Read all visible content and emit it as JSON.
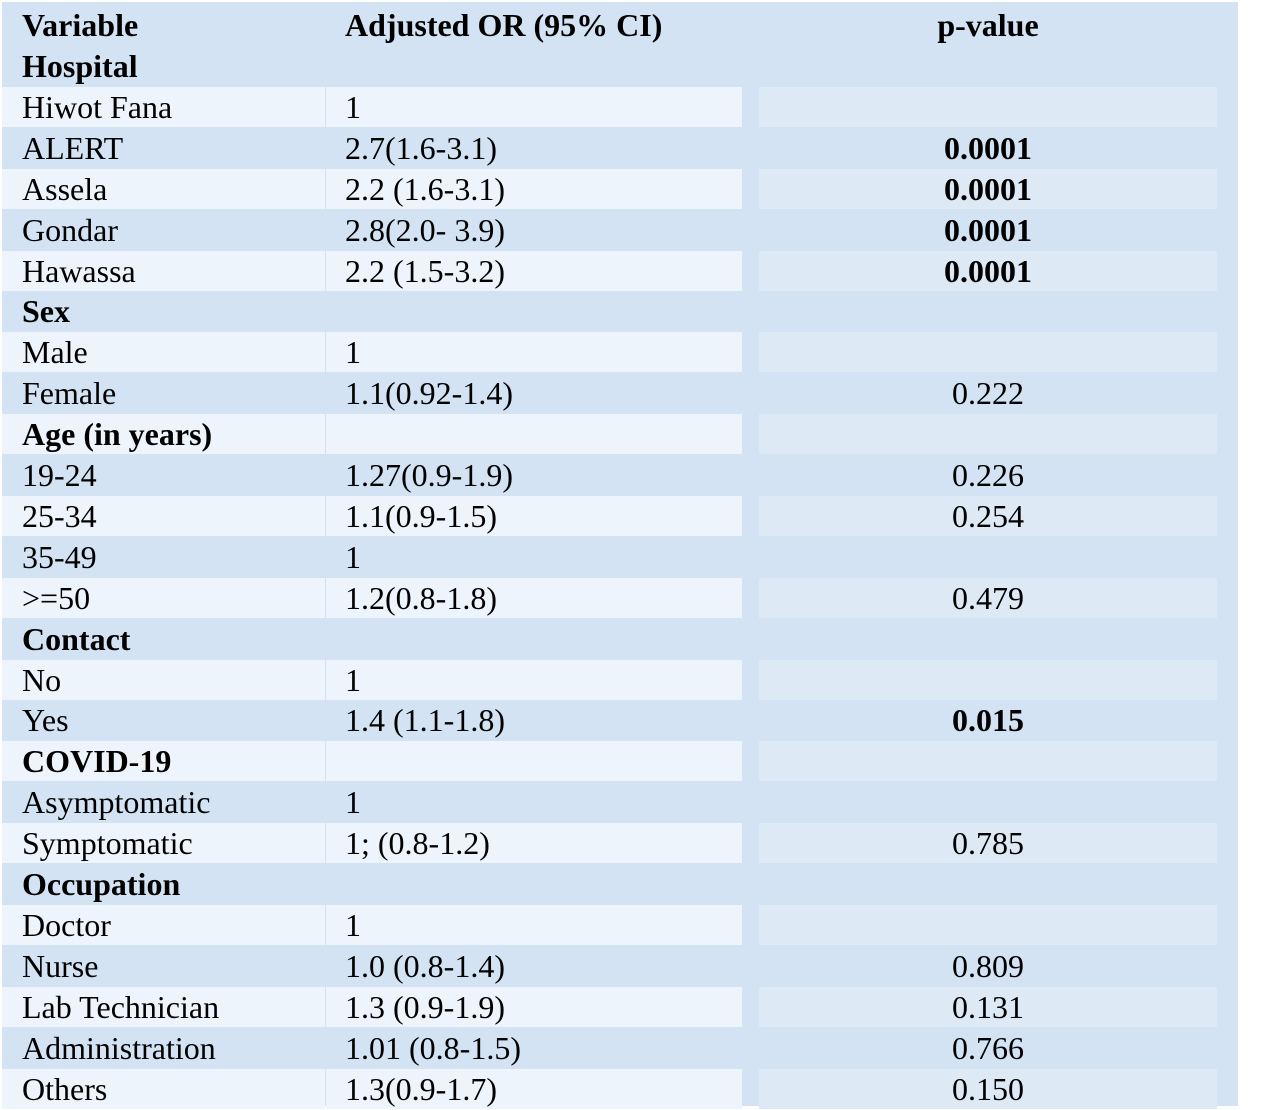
{
  "header": {
    "variable": "Variable",
    "adjusted_or": "Adjusted OR (95% CI)",
    "p_value": "p-value"
  },
  "rows": [
    {
      "type": "group",
      "label": "Hospital",
      "or": "",
      "p": ""
    },
    {
      "type": "item",
      "label": "Hiwot Fana",
      "or": "1",
      "p": ""
    },
    {
      "type": "item",
      "label": "ALERT",
      "or": "2.7(1.6-3.1)",
      "p": "0.0001",
      "bold_p": true
    },
    {
      "type": "item",
      "label": "Assela",
      "or": "2.2 (1.6-3.1)",
      "p": "0.0001",
      "bold_p": true
    },
    {
      "type": "item",
      "label": "Gondar",
      "or": "2.8(2.0- 3.9)",
      "p": "0.0001",
      "bold_p": true
    },
    {
      "type": "item",
      "label": "Hawassa",
      "or": "2.2 (1.5-3.2)",
      "p": "0.0001",
      "bold_p": true
    },
    {
      "type": "group",
      "label": "Sex",
      "or": "",
      "p": ""
    },
    {
      "type": "item",
      "label": "Male",
      "or": "1",
      "p": ""
    },
    {
      "type": "item",
      "label": "Female",
      "or": "1.1(0.92-1.4)",
      "p": "0.222"
    },
    {
      "type": "group",
      "label": "Age (in years)",
      "or": "",
      "p": ""
    },
    {
      "type": "item",
      "label": "19-24",
      "or": "1.27(0.9-1.9)",
      "p": "0.226"
    },
    {
      "type": "item",
      "label": "25-34",
      "or": "1.1(0.9-1.5)",
      "p": "0.254"
    },
    {
      "type": "item",
      "label": "35-49",
      "or": "1",
      "p": ""
    },
    {
      "type": "item",
      "label": ">=50",
      "or": "1.2(0.8-1.8)",
      "p": "0.479"
    },
    {
      "type": "group",
      "label": "Contact",
      "or": "",
      "p": ""
    },
    {
      "type": "item",
      "label": "No",
      "or": "1",
      "p": ""
    },
    {
      "type": "item",
      "label": "Yes",
      "or": "1.4 (1.1-1.8)",
      "p": "0.015",
      "bold_p": true
    },
    {
      "type": "group",
      "label": "COVID-19",
      "or": "",
      "p": ""
    },
    {
      "type": "item",
      "label": "Asymptomatic",
      "or": "1",
      "p": ""
    },
    {
      "type": "item",
      "label": "Symptomatic",
      "or": "1; (0.8-1.2)",
      "p": "0.785"
    },
    {
      "type": "group",
      "label": "Occupation",
      "or": "",
      "p": ""
    },
    {
      "type": "item",
      "label": "Doctor",
      "or": "1",
      "p": ""
    },
    {
      "type": "item",
      "label": "Nurse",
      "or": "1.0 (0.8-1.4)",
      "p": "0.809"
    },
    {
      "type": "item",
      "label": "Lab Technician",
      "or": "1.3 (0.9-1.9)",
      "p": "0.131"
    },
    {
      "type": "item",
      "label": "Administration",
      "or": "1.01 (0.8-1.5)",
      "p": "0.766"
    },
    {
      "type": "item",
      "label": "Others",
      "or": "1.3(0.9-1.7)",
      "p": "0.150"
    }
  ],
  "colors": {
    "table_background": "#d3e3f3",
    "row_alternate": "#eef4fb"
  }
}
